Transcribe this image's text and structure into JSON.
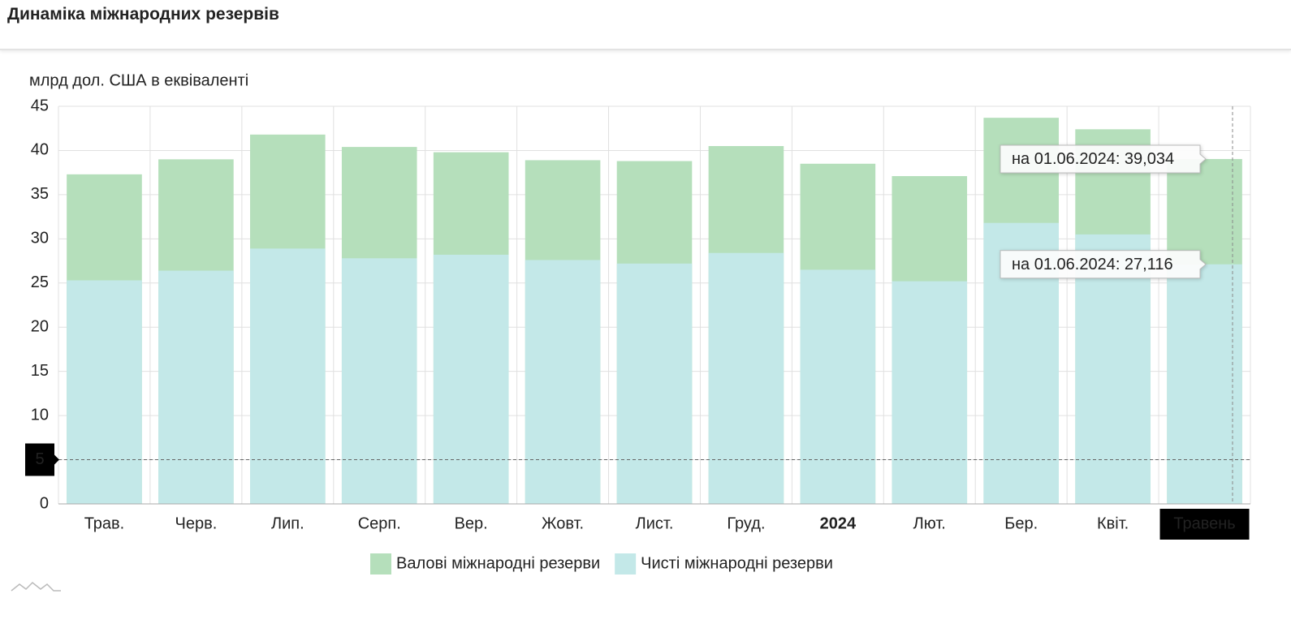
{
  "chart_data": {
    "type": "bar",
    "title": "Динаміка міжнародних резервів",
    "y_label": "млрд дол. США в еквіваленті",
    "categories": [
      "Трав.",
      "Черв.",
      "Лип.",
      "Серп.",
      "Вер.",
      "Жовт.",
      "Лист.",
      "Груд.",
      "2024",
      "Лют.",
      "Бер.",
      "Квіт.",
      "Травень"
    ],
    "series": [
      {
        "name": "Валові міжнародні резерви",
        "color": "#b5dfbb",
        "values": [
          37.3,
          39.0,
          41.8,
          40.4,
          39.8,
          38.9,
          38.8,
          40.5,
          38.5,
          37.1,
          43.7,
          42.4,
          39.034
        ],
        "value_labels": [
          null,
          null,
          null,
          null,
          null,
          null,
          null,
          null,
          null,
          null,
          null,
          null,
          "на 01.06.2024: 39,034"
        ]
      },
      {
        "name": "Чисті міжнародні резерви",
        "color": "#c3e8e8",
        "values": [
          25.3,
          26.4,
          28.9,
          27.8,
          28.2,
          27.6,
          27.2,
          28.4,
          26.5,
          25.2,
          31.8,
          30.5,
          27.116
        ],
        "value_labels": [
          null,
          null,
          null,
          null,
          null,
          null,
          null,
          null,
          null,
          null,
          null,
          null,
          "на 01.06.2024: 27,116"
        ]
      }
    ],
    "ylim": [
      0,
      45
    ],
    "yticks": [
      0,
      5,
      10,
      15,
      20,
      25,
      30,
      35,
      40,
      45
    ],
    "grid": true,
    "crosshair_y": 5,
    "legend": "bottom"
  }
}
